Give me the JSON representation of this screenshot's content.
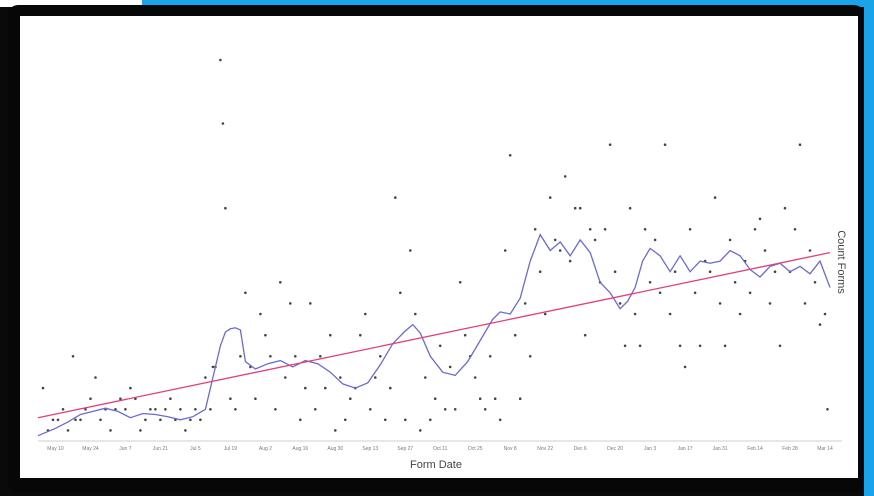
{
  "chart_data": {
    "type": "scatter",
    "title": "",
    "xlabel": "Form Date",
    "ylabel": "Count Forms",
    "x_tick_labels": [
      "May 10",
      "May 24",
      "Jun 7",
      "Jun 21",
      "Jul 5",
      "Jul 19",
      "Aug 2",
      "Aug 16",
      "Aug 30",
      "Sep 13",
      "Sep 27",
      "Oct 11",
      "Oct 25",
      "Nov 8",
      "Nov 22",
      "Dec 6",
      "Dec 20",
      "Jan 3",
      "Jan 17",
      "Jan 31",
      "Feb 14",
      "Feb 28",
      "Mar 14"
    ],
    "x_range_days": [
      -7,
      310
    ],
    "y_range": [
      0,
      36
    ],
    "grid": false,
    "legend": "none",
    "colors": {
      "points": "#444444",
      "moving_average": "#6a6ad6",
      "trend_line": "#e0407a"
    },
    "trend_line": {
      "start": [
        -7,
        2.2
      ],
      "end": [
        310,
        17.8
      ]
    },
    "points": [
      [
        -5,
        5
      ],
      [
        -3,
        1
      ],
      [
        -1,
        2
      ],
      [
        1,
        2
      ],
      [
        3,
        3
      ],
      [
        5,
        1
      ],
      [
        7,
        8
      ],
      [
        8,
        2
      ],
      [
        10,
        2
      ],
      [
        12,
        3
      ],
      [
        14,
        4
      ],
      [
        16,
        6
      ],
      [
        18,
        2
      ],
      [
        20,
        3
      ],
      [
        22,
        1
      ],
      [
        24,
        3
      ],
      [
        26,
        4
      ],
      [
        28,
        3
      ],
      [
        30,
        5
      ],
      [
        32,
        4
      ],
      [
        34,
        1
      ],
      [
        36,
        2
      ],
      [
        38,
        3
      ],
      [
        40,
        3
      ],
      [
        42,
        2
      ],
      [
        44,
        3
      ],
      [
        46,
        4
      ],
      [
        48,
        2
      ],
      [
        50,
        3
      ],
      [
        52,
        1
      ],
      [
        54,
        2
      ],
      [
        56,
        3
      ],
      [
        58,
        2
      ],
      [
        60,
        6
      ],
      [
        62,
        3
      ],
      [
        63,
        7
      ],
      [
        64,
        7
      ],
      [
        66,
        36
      ],
      [
        67,
        30
      ],
      [
        68,
        22
      ],
      [
        70,
        4
      ],
      [
        72,
        3
      ],
      [
        74,
        8
      ],
      [
        76,
        14
      ],
      [
        78,
        7
      ],
      [
        80,
        4
      ],
      [
        82,
        12
      ],
      [
        84,
        10
      ],
      [
        86,
        8
      ],
      [
        88,
        3
      ],
      [
        90,
        15
      ],
      [
        92,
        6
      ],
      [
        94,
        13
      ],
      [
        96,
        8
      ],
      [
        98,
        2
      ],
      [
        100,
        5
      ],
      [
        102,
        13
      ],
      [
        104,
        3
      ],
      [
        106,
        8
      ],
      [
        108,
        5
      ],
      [
        110,
        10
      ],
      [
        112,
        1
      ],
      [
        114,
        6
      ],
      [
        116,
        2
      ],
      [
        118,
        4
      ],
      [
        120,
        5
      ],
      [
        122,
        10
      ],
      [
        124,
        12
      ],
      [
        126,
        3
      ],
      [
        128,
        6
      ],
      [
        130,
        8
      ],
      [
        132,
        2
      ],
      [
        134,
        5
      ],
      [
        136,
        23
      ],
      [
        138,
        14
      ],
      [
        140,
        2
      ],
      [
        142,
        18
      ],
      [
        144,
        12
      ],
      [
        146,
        1
      ],
      [
        148,
        6
      ],
      [
        150,
        2
      ],
      [
        152,
        4
      ],
      [
        154,
        9
      ],
      [
        156,
        3
      ],
      [
        158,
        7
      ],
      [
        160,
        3
      ],
      [
        162,
        15
      ],
      [
        164,
        10
      ],
      [
        166,
        8
      ],
      [
        168,
        6
      ],
      [
        170,
        4
      ],
      [
        172,
        3
      ],
      [
        174,
        8
      ],
      [
        176,
        4
      ],
      [
        178,
        2
      ],
      [
        180,
        18
      ],
      [
        182,
        27
      ],
      [
        184,
        10
      ],
      [
        186,
        4
      ],
      [
        188,
        13
      ],
      [
        190,
        8
      ],
      [
        192,
        20
      ],
      [
        194,
        16
      ],
      [
        196,
        12
      ],
      [
        198,
        23
      ],
      [
        200,
        19
      ],
      [
        202,
        18
      ],
      [
        204,
        25
      ],
      [
        206,
        17
      ],
      [
        208,
        22
      ],
      [
        210,
        22
      ],
      [
        212,
        10
      ],
      [
        214,
        20
      ],
      [
        216,
        19
      ],
      [
        218,
        15
      ],
      [
        220,
        20
      ],
      [
        222,
        28
      ],
      [
        224,
        16
      ],
      [
        226,
        13
      ],
      [
        228,
        9
      ],
      [
        230,
        22
      ],
      [
        232,
        12
      ],
      [
        234,
        9
      ],
      [
        236,
        20
      ],
      [
        238,
        15
      ],
      [
        240,
        19
      ],
      [
        242,
        14
      ],
      [
        244,
        28
      ],
      [
        246,
        12
      ],
      [
        248,
        16
      ],
      [
        250,
        9
      ],
      [
        252,
        7
      ],
      [
        254,
        20
      ],
      [
        256,
        14
      ],
      [
        258,
        9
      ],
      [
        260,
        17
      ],
      [
        262,
        16
      ],
      [
        264,
        23
      ],
      [
        266,
        13
      ],
      [
        268,
        9
      ],
      [
        270,
        19
      ],
      [
        272,
        15
      ],
      [
        274,
        12
      ],
      [
        276,
        17
      ],
      [
        278,
        14
      ],
      [
        280,
        20
      ],
      [
        282,
        21
      ],
      [
        284,
        18
      ],
      [
        286,
        13
      ],
      [
        288,
        16
      ],
      [
        290,
        9
      ],
      [
        292,
        22
      ],
      [
        294,
        16
      ],
      [
        296,
        20
      ],
      [
        298,
        28
      ],
      [
        300,
        13
      ],
      [
        302,
        18
      ],
      [
        304,
        15
      ],
      [
        306,
        11
      ],
      [
        308,
        12
      ],
      [
        309,
        3
      ]
    ],
    "moving_average": [
      [
        -7,
        0.5
      ],
      [
        0,
        1.2
      ],
      [
        5,
        1.8
      ],
      [
        10,
        2.5
      ],
      [
        15,
        2.8
      ],
      [
        20,
        3.1
      ],
      [
        25,
        2.8
      ],
      [
        30,
        2.2
      ],
      [
        35,
        2.6
      ],
      [
        40,
        2.5
      ],
      [
        45,
        2.3
      ],
      [
        50,
        2.0
      ],
      [
        55,
        2.3
      ],
      [
        60,
        3.0
      ],
      [
        63,
        6.0
      ],
      [
        66,
        9.0
      ],
      [
        68,
        10.3
      ],
      [
        70,
        10.6
      ],
      [
        72,
        10.7
      ],
      [
        74,
        10.5
      ],
      [
        76,
        7.5
      ],
      [
        80,
        6.8
      ],
      [
        85,
        7.3
      ],
      [
        90,
        7.6
      ],
      [
        95,
        7.0
      ],
      [
        100,
        7.6
      ],
      [
        105,
        7.3
      ],
      [
        110,
        6.5
      ],
      [
        115,
        5.4
      ],
      [
        120,
        5.0
      ],
      [
        125,
        5.5
      ],
      [
        130,
        7.2
      ],
      [
        135,
        9.2
      ],
      [
        140,
        10.4
      ],
      [
        143,
        11.0
      ],
      [
        146,
        10.2
      ],
      [
        150,
        8.0
      ],
      [
        155,
        6.5
      ],
      [
        160,
        6.2
      ],
      [
        165,
        7.5
      ],
      [
        170,
        9.5
      ],
      [
        175,
        11.5
      ],
      [
        178,
        12.2
      ],
      [
        182,
        12.0
      ],
      [
        186,
        13.5
      ],
      [
        190,
        17.0
      ],
      [
        194,
        19.5
      ],
      [
        198,
        18.0
      ],
      [
        202,
        18.8
      ],
      [
        206,
        17.5
      ],
      [
        210,
        19.0
      ],
      [
        214,
        17.8
      ],
      [
        218,
        15.0
      ],
      [
        222,
        14.0
      ],
      [
        226,
        12.5
      ],
      [
        229,
        13.2
      ],
      [
        232,
        14.5
      ],
      [
        235,
        17.0
      ],
      [
        238,
        18.2
      ],
      [
        242,
        17.5
      ],
      [
        246,
        16.0
      ],
      [
        250,
        17.5
      ],
      [
        254,
        16.0
      ],
      [
        258,
        17.0
      ],
      [
        262,
        16.8
      ],
      [
        266,
        17.0
      ],
      [
        270,
        18.0
      ],
      [
        274,
        17.5
      ],
      [
        278,
        16.2
      ],
      [
        282,
        15.5
      ],
      [
        286,
        16.5
      ],
      [
        290,
        16.8
      ],
      [
        294,
        16.0
      ],
      [
        298,
        16.5
      ],
      [
        302,
        15.8
      ],
      [
        306,
        17.0
      ],
      [
        310,
        14.5
      ]
    ]
  }
}
